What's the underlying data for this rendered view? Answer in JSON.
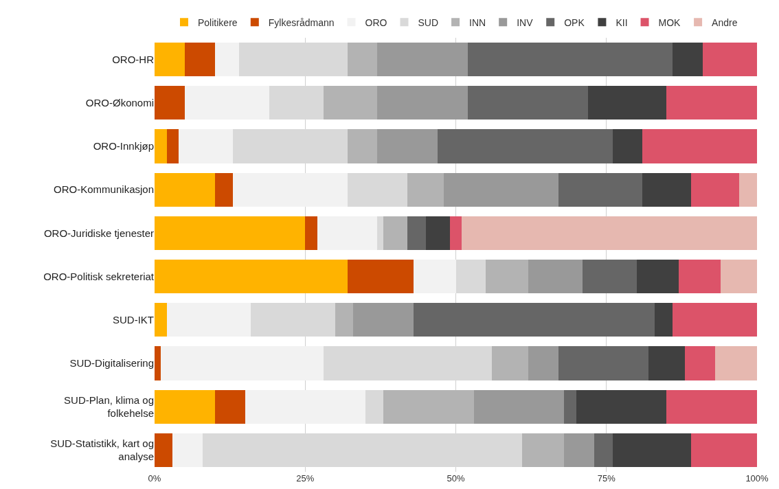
{
  "chart_data": {
    "type": "bar",
    "orientation": "horizontal",
    "stacked": true,
    "categories": [
      "ORO-HR",
      "ORO-Økonomi",
      "ORO-Innkjøp",
      "ORO-Kommunikasjon",
      "ORO-Juridiske tjenester",
      "ORO-Politisk sekreteriat",
      "SUD-IKT",
      "SUD-Digitalisering",
      "SUD-Plan, klima og folkehelse",
      "SUD-Statistikk, kart og analyse"
    ],
    "series": [
      {
        "name": "Politikere",
        "color": "#ffb300",
        "values": [
          5,
          0,
          2,
          10,
          25,
          32,
          2,
          0,
          10,
          0
        ]
      },
      {
        "name": "Fylkesrådmann",
        "color": "#cc4a00",
        "values": [
          5,
          5,
          2,
          3,
          2,
          11,
          0,
          1,
          5,
          3
        ]
      },
      {
        "name": "ORO",
        "color": "#f2f2f2",
        "values": [
          4,
          14,
          9,
          19,
          10,
          7,
          14,
          27,
          20,
          5
        ]
      },
      {
        "name": "SUD",
        "color": "#d9d9d9",
        "values": [
          18,
          9,
          19,
          10,
          1,
          5,
          14,
          28,
          3,
          53
        ]
      },
      {
        "name": "INN",
        "color": "#b3b3b3",
        "values": [
          5,
          9,
          5,
          6,
          4,
          7,
          3,
          6,
          15,
          7
        ]
      },
      {
        "name": "INV",
        "color": "#999999",
        "values": [
          15,
          15,
          10,
          19,
          0,
          9,
          10,
          5,
          15,
          5
        ]
      },
      {
        "name": "OPK",
        "color": "#666666",
        "values": [
          34,
          20,
          29,
          14,
          3,
          9,
          40,
          15,
          2,
          3
        ]
      },
      {
        "name": "KII",
        "color": "#404040",
        "values": [
          5,
          13,
          5,
          8,
          4,
          7,
          3,
          6,
          15,
          13
        ]
      },
      {
        "name": "MOK",
        "color": "#dc5369",
        "values": [
          9,
          15,
          19,
          8,
          2,
          7,
          14,
          5,
          15,
          11
        ]
      },
      {
        "name": "Andre",
        "color": "#e6b8b0",
        "values": [
          0,
          0,
          0,
          3,
          49,
          6,
          0,
          7,
          0,
          0
        ]
      }
    ],
    "xlim": [
      0,
      100
    ],
    "xticks": [
      {
        "value": 0,
        "label": "0%"
      },
      {
        "value": 25,
        "label": "25%"
      },
      {
        "value": 50,
        "label": "50%"
      },
      {
        "value": 75,
        "label": "75%"
      },
      {
        "value": 100,
        "label": "100%"
      }
    ],
    "grid": "x",
    "legend": "top"
  }
}
